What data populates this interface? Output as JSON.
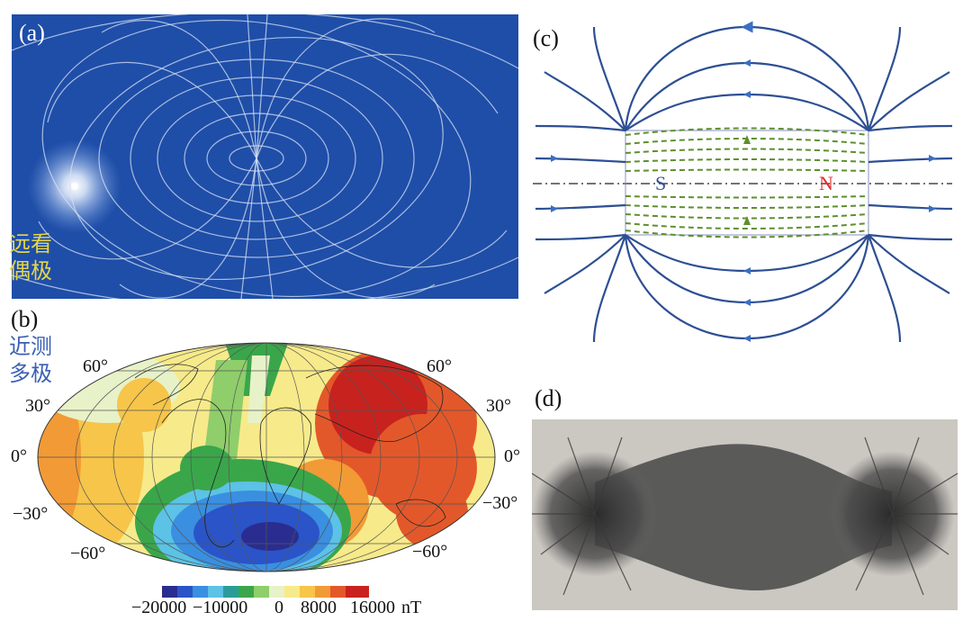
{
  "panels": {
    "a": {
      "label": "(a)",
      "caption": [
        "远看",
        "偶极"
      ]
    },
    "b": {
      "label": "(b)",
      "caption": [
        "近测",
        "多极"
      ]
    },
    "c": {
      "label": "(c)",
      "pole_s": "S",
      "pole_n": "N"
    },
    "d": {
      "label": "(d)"
    }
  },
  "map": {
    "lat_left": [
      "60°",
      "30°",
      "0°",
      "−30°",
      "−60°"
    ],
    "lat_right": [
      "60°",
      "30°",
      "0°",
      "−30°",
      "−60°"
    ],
    "colorbar_ticks": [
      "−20000",
      "−10000",
      "0",
      "8000",
      "16000"
    ],
    "colorbar_unit": "nT",
    "colors": [
      "#2a2d8f",
      "#2a54c8",
      "#3a8fe0",
      "#5cc2e6",
      "#3aa64a",
      "#8fce6a",
      "#e7f2c8",
      "#f7ea8a",
      "#f6c54a",
      "#f29a35",
      "#e3582a",
      "#c8221f"
    ]
  }
}
